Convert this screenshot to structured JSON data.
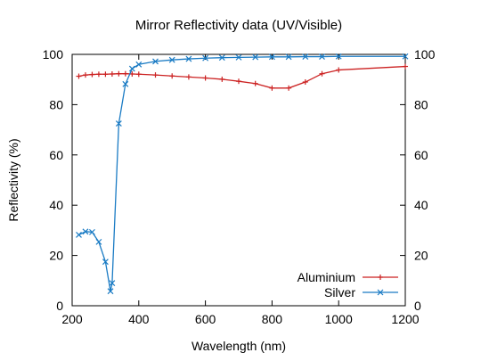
{
  "chart_data": {
    "type": "line",
    "title": "Mirror Reflectivity data (UV/Visible)",
    "xlabel": "Wavelength (nm)",
    "ylabel": "Reflectivity (%)",
    "xlim": [
      200,
      1200
    ],
    "ylim": [
      0,
      100
    ],
    "x_ticks": [
      200,
      400,
      600,
      800,
      1000,
      1200
    ],
    "y_ticks": [
      0,
      20,
      40,
      60,
      80,
      100
    ],
    "right_axis_mirrors_left": true,
    "grid": false,
    "legend_position": "bottom-right",
    "series": [
      {
        "name": "Aluminium",
        "color": "#cc2222",
        "marker": "plus",
        "points": [
          [
            220,
            91.3
          ],
          [
            240,
            91.8
          ],
          [
            260,
            92.0
          ],
          [
            280,
            92.1
          ],
          [
            300,
            92.1
          ],
          [
            320,
            92.2
          ],
          [
            340,
            92.3
          ],
          [
            360,
            92.3
          ],
          [
            380,
            92.2
          ],
          [
            400,
            92.1
          ],
          [
            450,
            91.8
          ],
          [
            500,
            91.4
          ],
          [
            550,
            91.0
          ],
          [
            600,
            90.6
          ],
          [
            650,
            90.1
          ],
          [
            700,
            89.3
          ],
          [
            750,
            88.4
          ],
          [
            800,
            86.6
          ],
          [
            850,
            86.6
          ],
          [
            900,
            89.0
          ],
          [
            950,
            92.3
          ],
          [
            1000,
            93.8
          ],
          [
            1200,
            95.2
          ]
        ]
      },
      {
        "name": "Silver",
        "color": "#1a7bc4",
        "marker": "x",
        "points": [
          [
            220,
            28.2
          ],
          [
            240,
            29.5
          ],
          [
            260,
            29.3
          ],
          [
            280,
            25.4
          ],
          [
            300,
            17.5
          ],
          [
            315,
            5.8
          ],
          [
            320,
            9.0
          ],
          [
            340,
            72.5
          ],
          [
            360,
            88.2
          ],
          [
            380,
            94.3
          ],
          [
            400,
            96.0
          ],
          [
            450,
            97.2
          ],
          [
            500,
            97.8
          ],
          [
            550,
            98.2
          ],
          [
            600,
            98.5
          ],
          [
            650,
            98.7
          ],
          [
            700,
            98.8
          ],
          [
            750,
            98.9
          ],
          [
            800,
            99.0
          ],
          [
            850,
            99.0
          ],
          [
            900,
            99.1
          ],
          [
            950,
            99.1
          ],
          [
            1000,
            99.2
          ],
          [
            1200,
            99.2
          ]
        ]
      }
    ]
  }
}
